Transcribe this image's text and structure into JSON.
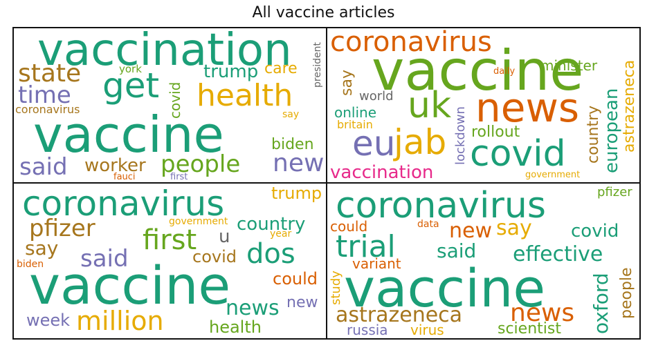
{
  "title": "All vaccine articles",
  "colors": {
    "teal": "#1b9e77",
    "orange": "#d95f02",
    "purple": "#7570b3",
    "magenta": "#e7298a",
    "green": "#66a61e",
    "gold": "#e6ab02",
    "brown": "#a6761d",
    "gray": "#666666"
  },
  "panels": [
    {
      "words": [
        {
          "text": "vaccination",
          "color": "#1b9e77"
        },
        {
          "text": "get",
          "color": "#1b9e77"
        },
        {
          "text": "state",
          "color": "#a6761d"
        },
        {
          "text": "time",
          "color": "#7570b3"
        },
        {
          "text": "york",
          "color": "#66a61e"
        },
        {
          "text": "covid",
          "color": "#66a61e"
        },
        {
          "text": "trump",
          "color": "#1b9e77"
        },
        {
          "text": "care",
          "color": "#e6ab02"
        },
        {
          "text": "president",
          "color": "#666666"
        },
        {
          "text": "health",
          "color": "#e6ab02"
        },
        {
          "text": "coronavirus",
          "color": "#a6761d"
        },
        {
          "text": "say",
          "color": "#e6ab02"
        },
        {
          "text": "vaccine",
          "color": "#1b9e77"
        },
        {
          "text": "biden",
          "color": "#66a61e"
        },
        {
          "text": "said",
          "color": "#7570b3"
        },
        {
          "text": "worker",
          "color": "#a6761d"
        },
        {
          "text": "people",
          "color": "#66a61e"
        },
        {
          "text": "new",
          "color": "#7570b3"
        },
        {
          "text": "fauci",
          "color": "#d95f02"
        },
        {
          "text": "first",
          "color": "#7570b3"
        }
      ]
    },
    {
      "words": [
        {
          "text": "coronavirus",
          "color": "#d95f02"
        },
        {
          "text": "minister",
          "color": "#66a61e"
        },
        {
          "text": "vaccine",
          "color": "#66a61e"
        },
        {
          "text": "daily",
          "color": "#d95f02"
        },
        {
          "text": "say",
          "color": "#a6761d"
        },
        {
          "text": "world",
          "color": "#666666"
        },
        {
          "text": "uk",
          "color": "#66a61e"
        },
        {
          "text": "news",
          "color": "#d95f02"
        },
        {
          "text": "online",
          "color": "#1b9e77"
        },
        {
          "text": "britain",
          "color": "#e6ab02"
        },
        {
          "text": "lockdown",
          "color": "#7570b3"
        },
        {
          "text": "rollout",
          "color": "#66a61e"
        },
        {
          "text": "country",
          "color": "#a6761d"
        },
        {
          "text": "european",
          "color": "#1b9e77"
        },
        {
          "text": "astrazeneca",
          "color": "#e6ab02"
        },
        {
          "text": "eu",
          "color": "#7570b3"
        },
        {
          "text": "jab",
          "color": "#e6ab02"
        },
        {
          "text": "covid",
          "color": "#1b9e77"
        },
        {
          "text": "vaccination",
          "color": "#e7298a"
        },
        {
          "text": "government",
          "color": "#e6ab02"
        }
      ]
    },
    {
      "words": [
        {
          "text": "coronavirus",
          "color": "#1b9e77"
        },
        {
          "text": "trump",
          "color": "#e6ab02"
        },
        {
          "text": "pfizer",
          "color": "#a6761d"
        },
        {
          "text": "government",
          "color": "#e6ab02"
        },
        {
          "text": "country",
          "color": "#1b9e77"
        },
        {
          "text": "first",
          "color": "#66a61e"
        },
        {
          "text": "u",
          "color": "#666666"
        },
        {
          "text": "year",
          "color": "#e6ab02"
        },
        {
          "text": "say",
          "color": "#a6761d"
        },
        {
          "text": "said",
          "color": "#7570b3"
        },
        {
          "text": "covid",
          "color": "#a6761d"
        },
        {
          "text": "dos",
          "color": "#1b9e77"
        },
        {
          "text": "biden",
          "color": "#d95f02"
        },
        {
          "text": "could",
          "color": "#d95f02"
        },
        {
          "text": "vaccine",
          "color": "#1b9e77"
        },
        {
          "text": "news",
          "color": "#1b9e77"
        },
        {
          "text": "new",
          "color": "#7570b3"
        },
        {
          "text": "week",
          "color": "#7570b3"
        },
        {
          "text": "million",
          "color": "#e6ab02"
        },
        {
          "text": "health",
          "color": "#66a61e"
        }
      ]
    },
    {
      "words": [
        {
          "text": "coronavirus",
          "color": "#1b9e77"
        },
        {
          "text": "pfizer",
          "color": "#66a61e"
        },
        {
          "text": "could",
          "color": "#d95f02"
        },
        {
          "text": "data",
          "color": "#d95f02"
        },
        {
          "text": "new",
          "color": "#d95f02"
        },
        {
          "text": "say",
          "color": "#e6ab02"
        },
        {
          "text": "covid",
          "color": "#1b9e77"
        },
        {
          "text": "trial",
          "color": "#1b9e77"
        },
        {
          "text": "said",
          "color": "#1b9e77"
        },
        {
          "text": "effective",
          "color": "#1b9e77"
        },
        {
          "text": "variant",
          "color": "#d95f02"
        },
        {
          "text": "study",
          "color": "#e6ab02"
        },
        {
          "text": "vaccine",
          "color": "#1b9e77"
        },
        {
          "text": "oxford",
          "color": "#1b9e77"
        },
        {
          "text": "people",
          "color": "#a6761d"
        },
        {
          "text": "astrazeneca",
          "color": "#a6761d"
        },
        {
          "text": "news",
          "color": "#d95f02"
        },
        {
          "text": "russia",
          "color": "#7570b3"
        },
        {
          "text": "virus",
          "color": "#e6ab02"
        },
        {
          "text": "scientist",
          "color": "#66a61e"
        }
      ]
    }
  ]
}
